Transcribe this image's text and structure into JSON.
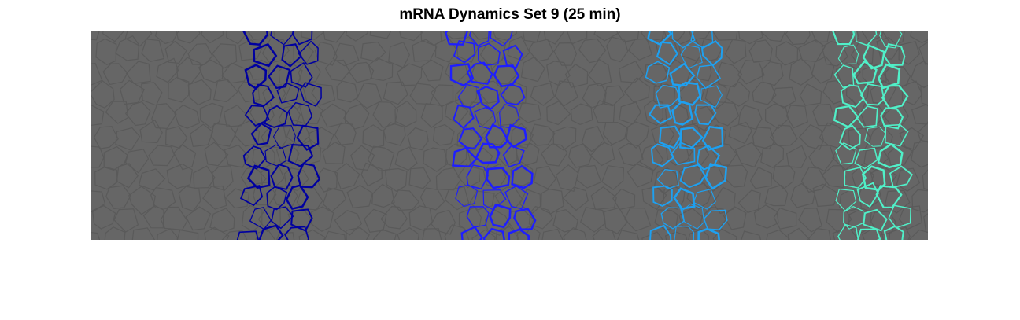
{
  "figure": {
    "title": "mRNA Dynamics Set 9 (25 min)"
  },
  "image": {
    "description_free": true,
    "background_color": "#666666",
    "cell_edge_color": "#5a5a5a",
    "stripes": [
      {
        "color": "#0000a0"
      },
      {
        "color": "#1e1eff"
      },
      {
        "color": "#1ea0f0"
      },
      {
        "color": "#50f0c8"
      }
    ]
  }
}
